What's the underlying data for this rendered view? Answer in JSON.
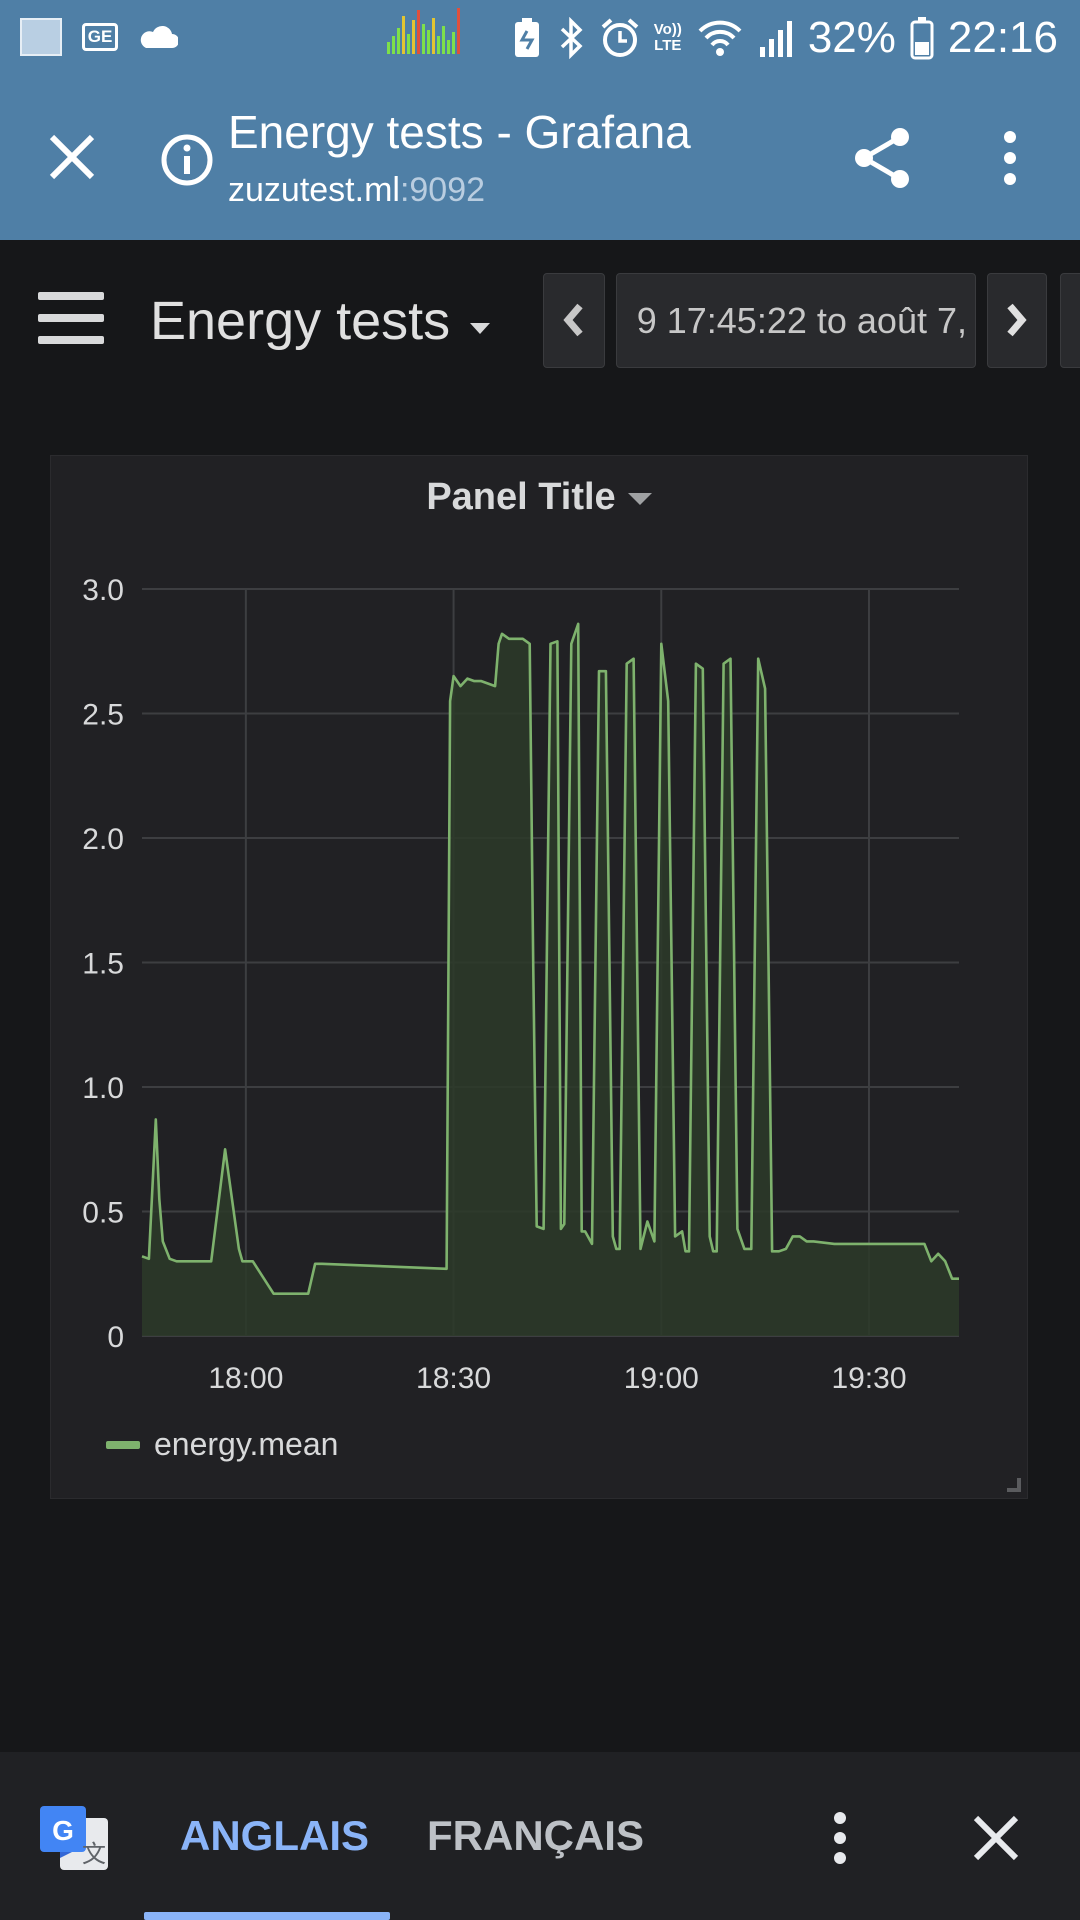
{
  "status_bar": {
    "battery": "32%",
    "time": "22:16",
    "network_badge_top": "Vo))",
    "network_badge_bottom": "LTE",
    "icons": [
      "gallery-icon",
      "news-icon",
      "cloud-icon",
      "audio-visualizer-icon",
      "battery-saver-icon",
      "bluetooth-icon",
      "alarm-icon",
      "volte-icon",
      "wifi-icon",
      "signal-icon",
      "battery-icon"
    ]
  },
  "browser": {
    "page_title": "Energy tests - Grafana",
    "domain": "zuzutest.ml",
    "port": ":9092"
  },
  "dashboard": {
    "title": "Energy tests",
    "time_range": "9 17:45:22 to août 7,"
  },
  "panel": {
    "title": "Panel Title"
  },
  "chart_data": {
    "type": "area",
    "title": "",
    "x": [
      "17:45",
      "17:46",
      "17:47",
      "17:47:30",
      "17:48",
      "17:49",
      "17:50",
      "17:55",
      "17:57",
      "17:59",
      "17:59:30",
      "18:00",
      "18:01",
      "18:04",
      "18:05",
      "18:09",
      "18:10",
      "18:11",
      "18:20",
      "18:29",
      "18:29:30",
      "18:30",
      "18:31",
      "18:32",
      "18:33",
      "18:34",
      "18:36",
      "18:36:30",
      "18:37",
      "18:38",
      "18:40",
      "18:41",
      "18:41:30",
      "18:42",
      "18:43",
      "18:44",
      "18:45",
      "18:45:30",
      "18:46",
      "18:47",
      "18:48",
      "18:48:30",
      "18:49",
      "18:50",
      "18:51",
      "18:52",
      "18:53",
      "18:53:30",
      "18:54",
      "18:55",
      "18:56",
      "18:57",
      "18:58",
      "18:59",
      "19:00",
      "19:01",
      "19:02",
      "19:03",
      "19:03:30",
      "19:04",
      "19:05",
      "19:06",
      "19:07",
      "19:07:30",
      "19:08",
      "19:09",
      "19:10",
      "19:11",
      "19:12",
      "19:13",
      "19:14",
      "19:15",
      "19:16",
      "19:17",
      "19:18",
      "19:19",
      "19:20",
      "19:21",
      "19:22",
      "19:25",
      "19:30",
      "19:35",
      "19:38",
      "19:39",
      "19:40",
      "19:41",
      "19:42",
      "19:43"
    ],
    "series": [
      {
        "name": "energy.mean",
        "values": [
          0.32,
          0.31,
          0.87,
          0.55,
          0.38,
          0.31,
          0.3,
          0.3,
          0.75,
          0.35,
          0.3,
          0.3,
          0.3,
          0.17,
          0.17,
          0.17,
          0.29,
          0.29,
          0.28,
          0.27,
          2.55,
          2.65,
          2.61,
          2.64,
          2.63,
          2.63,
          2.61,
          2.78,
          2.82,
          2.8,
          2.8,
          2.78,
          1.5,
          0.44,
          0.43,
          2.78,
          2.79,
          0.43,
          0.45,
          2.78,
          2.86,
          0.42,
          0.42,
          0.37,
          2.67,
          2.67,
          0.4,
          0.35,
          0.35,
          2.7,
          2.72,
          0.35,
          0.46,
          0.38,
          2.78,
          2.55,
          0.4,
          0.42,
          0.34,
          0.34,
          2.7,
          2.68,
          0.4,
          0.34,
          0.34,
          2.7,
          2.72,
          0.43,
          0.35,
          0.35,
          2.72,
          2.6,
          0.34,
          0.34,
          0.35,
          0.4,
          0.4,
          0.38,
          0.38,
          0.37,
          0.37,
          0.37,
          0.37,
          0.3,
          0.33,
          0.3,
          0.23,
          0.23
        ]
      }
    ],
    "x_ticks": [
      "18:00",
      "18:30",
      "19:00",
      "19:30"
    ],
    "y_ticks": [
      "0",
      "0.5",
      "1.0",
      "1.5",
      "2.0",
      "2.5",
      "3.0"
    ],
    "ylim": [
      0,
      3.0
    ],
    "xlim": [
      "17:45",
      "19:43"
    ],
    "grid": true,
    "legend": "bottom-left",
    "line_color": "#7eb26d",
    "fill_color": "#2b3a29"
  },
  "translate_bar": {
    "tab_source": "ANGLAIS",
    "tab_target": "FRANÇAIS",
    "active_tab": "ANGLAIS"
  },
  "colors": {
    "chrome_blue": "#4f7fa6",
    "grafana_bg": "#161719",
    "panel_bg": "#212124",
    "accent_blue": "#8ab4f8"
  }
}
